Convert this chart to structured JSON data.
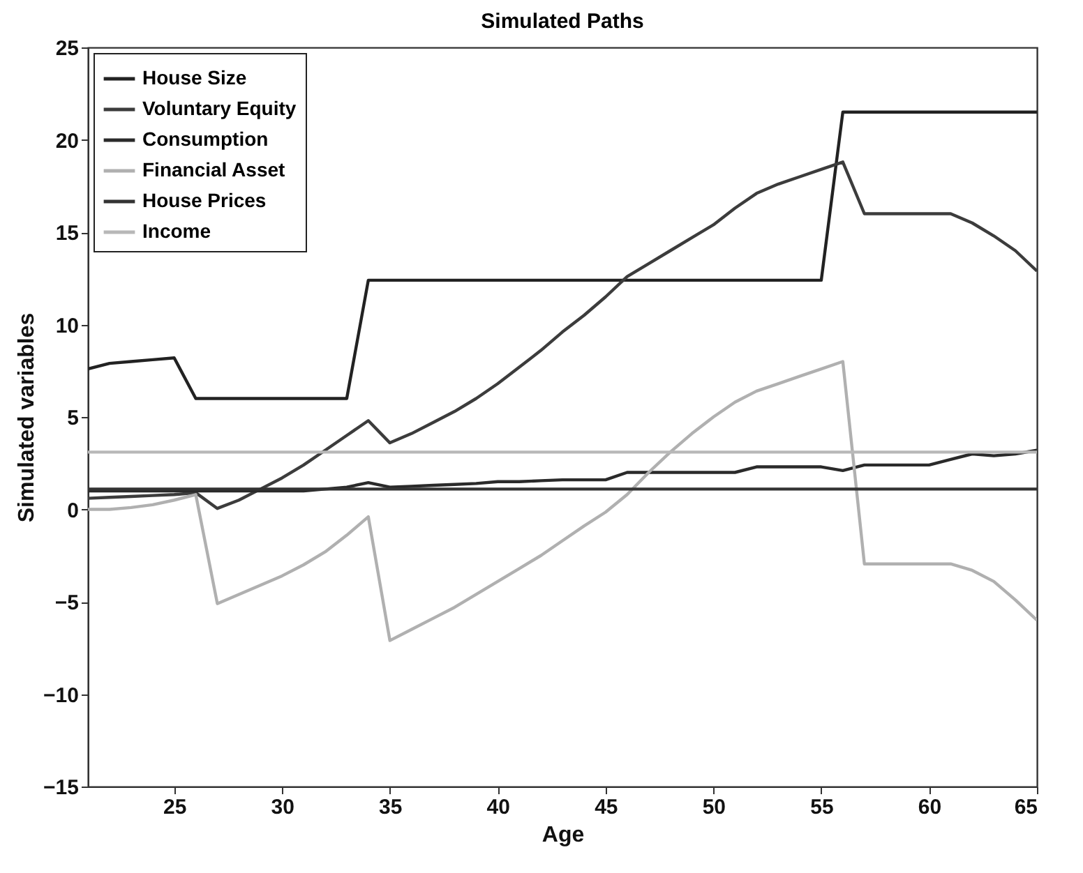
{
  "chart_data": {
    "type": "line",
    "title": "Simulated Paths",
    "xlabel": "Age",
    "ylabel": "Simulated variables",
    "x": [
      21,
      22,
      23,
      24,
      25,
      26,
      27,
      28,
      29,
      30,
      31,
      32,
      33,
      34,
      35,
      36,
      37,
      38,
      39,
      40,
      41,
      42,
      43,
      44,
      45,
      46,
      47,
      48,
      49,
      50,
      51,
      52,
      53,
      54,
      55,
      56,
      57,
      58,
      59,
      60,
      61,
      62,
      63,
      64,
      65
    ],
    "series": [
      {
        "name": "House Size",
        "color": "#222222",
        "values": [
          7.6,
          7.9,
          8.0,
          8.1,
          8.2,
          6,
          6,
          6,
          6,
          6,
          6,
          6,
          6,
          12.4,
          12.4,
          12.4,
          12.4,
          12.4,
          12.4,
          12.4,
          12.4,
          12.4,
          12.4,
          12.4,
          12.4,
          12.4,
          12.4,
          12.4,
          12.4,
          12.4,
          12.4,
          12.4,
          12.4,
          12.4,
          12.4,
          21.5,
          21.5,
          21.5,
          21.5,
          21.5,
          21.5,
          21.5,
          21.5,
          21.5,
          21.5
        ]
      },
      {
        "name": "Voluntary Equity",
        "color": "#3c3c3c",
        "values": [
          0.6,
          0.65,
          0.7,
          0.75,
          0.8,
          0.9,
          0.05,
          0.5,
          1.1,
          1.7,
          2.4,
          3.2,
          4.0,
          4.8,
          3.6,
          4.1,
          4.7,
          5.3,
          6.0,
          6.8,
          7.7,
          8.6,
          9.6,
          10.5,
          11.5,
          12.6,
          13.3,
          14.0,
          14.7,
          15.4,
          16.3,
          17.1,
          17.6,
          18.0,
          18.4,
          18.8,
          16.0,
          16.0,
          16.0,
          16.0,
          16.0,
          15.5,
          14.8,
          14.0,
          12.9
        ]
      },
      {
        "name": "Consumption",
        "color": "#2a2a2a",
        "values": [
          1.0,
          1.0,
          1.0,
          1.0,
          1.0,
          1.0,
          1.0,
          1.0,
          1.0,
          1.0,
          1.0,
          1.1,
          1.2,
          1.45,
          1.2,
          1.25,
          1.3,
          1.35,
          1.4,
          1.5,
          1.5,
          1.55,
          1.6,
          1.6,
          1.6,
          2.0,
          2.0,
          2.0,
          2.0,
          2.0,
          2.0,
          2.3,
          2.3,
          2.3,
          2.3,
          2.1,
          2.4,
          2.4,
          2.4,
          2.4,
          2.7,
          3.0,
          2.9,
          3.0,
          3.2
        ]
      },
      {
        "name": "Financial Asset",
        "color": "#b0b0b0",
        "values": [
          0,
          0,
          0.1,
          0.25,
          0.5,
          0.8,
          -5.1,
          -4.6,
          -4.1,
          -3.6,
          -3.0,
          -2.3,
          -1.4,
          -0.4,
          -7.1,
          -6.5,
          -5.9,
          -5.3,
          -4.6,
          -3.9,
          -3.2,
          -2.5,
          -1.7,
          -0.9,
          -0.15,
          0.8,
          2.0,
          3.1,
          4.1,
          5.0,
          5.8,
          6.4,
          6.8,
          7.2,
          7.6,
          8.0,
          -2.95,
          -2.95,
          -2.95,
          -2.95,
          -2.95,
          -3.3,
          -3.9,
          -4.9,
          -6.0
        ]
      },
      {
        "name": "House Prices",
        "color": "#333333",
        "values": [
          1.1,
          1.1,
          1.1,
          1.1,
          1.1,
          1.1,
          1.1,
          1.1,
          1.1,
          1.1,
          1.1,
          1.1,
          1.1,
          1.1,
          1.1,
          1.1,
          1.1,
          1.1,
          1.1,
          1.1,
          1.1,
          1.1,
          1.1,
          1.1,
          1.1,
          1.1,
          1.1,
          1.1,
          1.1,
          1.1,
          1.1,
          1.1,
          1.1,
          1.1,
          1.1,
          1.1,
          1.1,
          1.1,
          1.1,
          1.1,
          1.1,
          1.1,
          1.1,
          1.1,
          1.1
        ]
      },
      {
        "name": "Income",
        "color": "#b8b8b8",
        "values": [
          3.1,
          3.1,
          3.1,
          3.1,
          3.1,
          3.1,
          3.1,
          3.1,
          3.1,
          3.1,
          3.1,
          3.1,
          3.1,
          3.1,
          3.1,
          3.1,
          3.1,
          3.1,
          3.1,
          3.1,
          3.1,
          3.1,
          3.1,
          3.1,
          3.1,
          3.1,
          3.1,
          3.1,
          3.1,
          3.1,
          3.1,
          3.1,
          3.1,
          3.1,
          3.1,
          3.1,
          3.1,
          3.1,
          3.1,
          3.1,
          3.1,
          3.1,
          3.1,
          3.1,
          3.1
        ]
      }
    ],
    "xlim": [
      21,
      65
    ],
    "xticks": [
      25,
      30,
      35,
      40,
      45,
      50,
      55,
      60,
      65
    ],
    "ylim": [
      -15,
      25
    ],
    "yticks": [
      -15,
      -10,
      -5,
      0,
      5,
      10,
      15,
      20,
      25
    ],
    "legend": "top left"
  }
}
